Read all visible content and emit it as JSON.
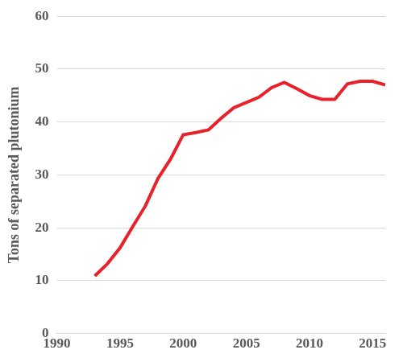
{
  "chart_data": {
    "type": "line",
    "y_label": "Tons of separated plutonium",
    "x": [
      1993,
      1994,
      1995,
      1996,
      1997,
      1998,
      1999,
      2000,
      2001,
      2002,
      2003,
      2004,
      2005,
      2006,
      2007,
      2008,
      2009,
      2010,
      2011,
      2012,
      2013,
      2014,
      2015,
      2016
    ],
    "values": [
      10.9,
      13.2,
      16.2,
      20.2,
      24.1,
      29.3,
      33.0,
      37.6,
      38.0,
      38.5,
      40.7,
      42.7,
      43.7,
      44.7,
      46.5,
      47.5,
      46.3,
      45.0,
      44.3,
      44.3,
      47.2,
      47.7,
      47.7,
      47.0
    ],
    "color": "#e8212b",
    "xlim": [
      1990,
      2016
    ],
    "xticks": [
      1990,
      1995,
      2000,
      2005,
      2010,
      2015
    ],
    "ylim": [
      0,
      60
    ],
    "yticks": [
      0,
      10,
      20,
      30,
      40,
      50,
      60
    ],
    "grid": true
  }
}
